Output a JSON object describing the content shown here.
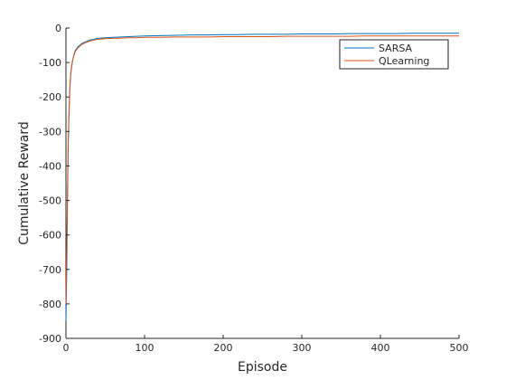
{
  "chart_data": {
    "type": "line",
    "title": "",
    "xlabel": "Episode",
    "ylabel": "Cumulative Reward",
    "xlim": [
      0,
      500
    ],
    "ylim": [
      -900,
      0
    ],
    "xticks": [
      0,
      100,
      200,
      300,
      400,
      500
    ],
    "yticks": [
      0,
      -100,
      -200,
      -300,
      -400,
      -500,
      -600,
      -700,
      -800,
      -900
    ],
    "grid": false,
    "legend_position": "top-right",
    "series": [
      {
        "name": "SARSA",
        "color": "#0072BD",
        "x": [
          0,
          1,
          2,
          3,
          4,
          5,
          6,
          8,
          10,
          12,
          15,
          20,
          25,
          30,
          35,
          40,
          50,
          60,
          70,
          80,
          90,
          100,
          120,
          140,
          160,
          180,
          200,
          220,
          240,
          260,
          280,
          300,
          320,
          340,
          360,
          380,
          400,
          420,
          440,
          460,
          480,
          500
        ],
        "y": [
          -850,
          -700,
          -500,
          -330,
          -240,
          -180,
          -135,
          -100,
          -78,
          -65,
          -55,
          -45,
          -40,
          -35,
          -33,
          -30,
          -28,
          -27,
          -26,
          -25,
          -24,
          -23,
          -22,
          -21,
          -20,
          -20,
          -19,
          -19,
          -18,
          -18,
          -18,
          -17,
          -17,
          -17,
          -16,
          -16,
          -16,
          -16,
          -15,
          -15,
          -15,
          -15
        ]
      },
      {
        "name": "QLearning",
        "color": "#D95319",
        "x": [
          0,
          1,
          2,
          3,
          4,
          5,
          6,
          8,
          10,
          12,
          15,
          20,
          25,
          30,
          35,
          40,
          50,
          60,
          70,
          80,
          90,
          100,
          120,
          140,
          160,
          180,
          200,
          220,
          240,
          260,
          280,
          300,
          320,
          340,
          360,
          380,
          400,
          420,
          440,
          460,
          480,
          500
        ],
        "y": [
          -800,
          -650,
          -470,
          -310,
          -230,
          -170,
          -130,
          -98,
          -80,
          -68,
          -58,
          -48,
          -42,
          -38,
          -35,
          -33,
          -31,
          -30,
          -29,
          -28,
          -28,
          -27,
          -27,
          -26,
          -26,
          -26,
          -25,
          -25,
          -25,
          -25,
          -24,
          -24,
          -24,
          -24,
          -24,
          -23,
          -23,
          -23,
          -23,
          -23,
          -23,
          -23
        ]
      }
    ]
  }
}
